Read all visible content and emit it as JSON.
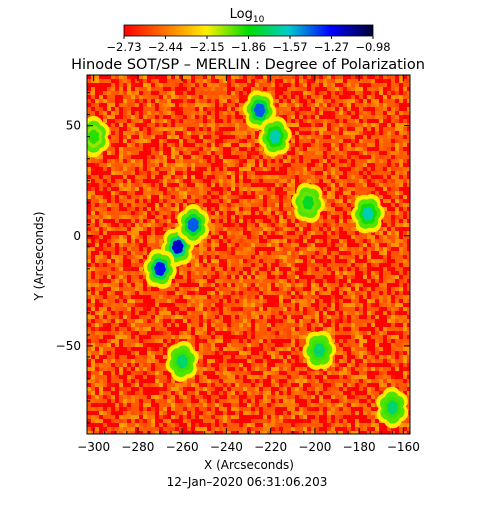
{
  "chart_data": {
    "type": "heatmap",
    "title": "Hinode SOT/SP – MERLIN : Degree of Polarization",
    "subtitle": "12–Jan–2020 06:31:06.203",
    "xlabel": "X (Arcseconds)",
    "ylabel": "Y (Arcseconds)",
    "xlim": [
      -303,
      -157
    ],
    "ylim": [
      -90,
      73
    ],
    "xticks": [
      -300,
      -280,
      -260,
      -240,
      -220,
      -200,
      -180,
      -160
    ],
    "yticks": [
      -50,
      0,
      50
    ],
    "colorbar": {
      "label": "Log",
      "label_sub": "10",
      "min": -2.73,
      "max": -0.98,
      "ticks": [
        "−2.73",
        "−2.44",
        "−2.15",
        "−1.86",
        "−1.57",
        "−1.27",
        "−0.98"
      ],
      "colormap": [
        "#ff0000",
        "#ff7700",
        "#ffee00",
        "#00dd00",
        "#00cccc",
        "#0000ff",
        "#000033"
      ]
    },
    "background_level": -2.6,
    "features": [
      {
        "x": -262,
        "y": -5,
        "level": -1.2
      },
      {
        "x": -270,
        "y": -15,
        "level": -1.3
      },
      {
        "x": -255,
        "y": 5,
        "level": -1.4
      },
      {
        "x": -225,
        "y": 57,
        "level": -1.4
      },
      {
        "x": -218,
        "y": 45,
        "level": -1.6
      },
      {
        "x": -260,
        "y": -57,
        "level": -1.7
      },
      {
        "x": -198,
        "y": -52,
        "level": -1.7
      },
      {
        "x": -203,
        "y": 15,
        "level": -1.8
      },
      {
        "x": -176,
        "y": 10,
        "level": -1.6
      },
      {
        "x": -165,
        "y": -78,
        "level": -1.7
      },
      {
        "x": -300,
        "y": 45,
        "level": -1.9
      }
    ]
  }
}
